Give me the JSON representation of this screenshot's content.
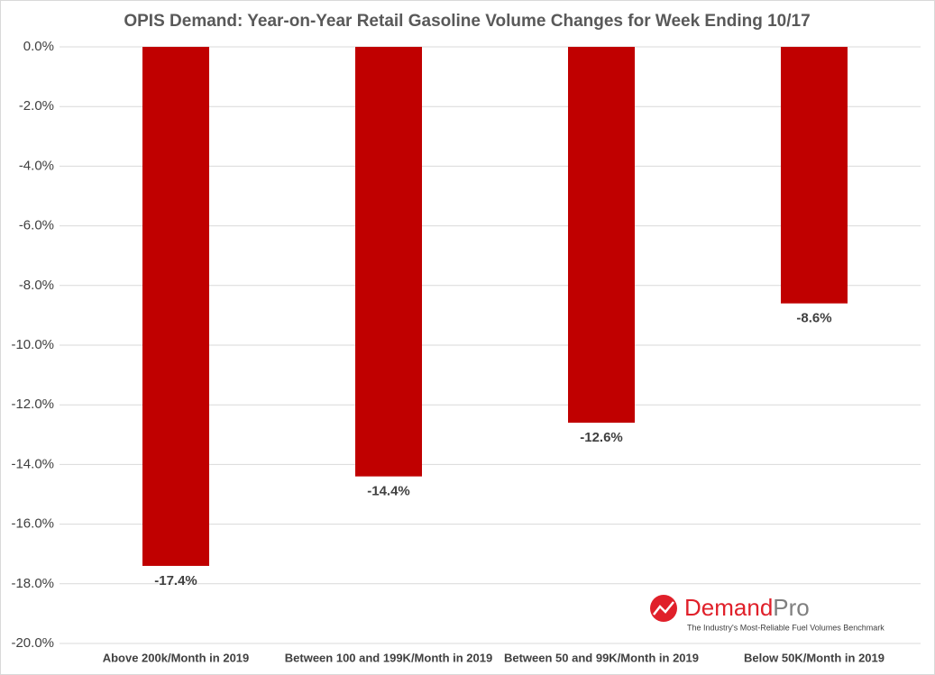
{
  "chart_data": {
    "type": "bar",
    "title": "OPIS Demand: Year-on-Year Retail Gasoline Volume Changes for Week Ending 10/17",
    "categories": [
      "Above 200k/Month in 2019",
      "Between 100 and 199K/Month in 2019",
      "Between 50 and 99K/Month in 2019",
      "Below 50K/Month in 2019"
    ],
    "values": [
      -17.4,
      -14.4,
      -12.6,
      -8.6
    ],
    "value_labels": [
      "-17.4%",
      "-14.4%",
      "-12.6%",
      "-8.6%"
    ],
    "color": "#c00000",
    "ylim": [
      -20,
      0
    ],
    "yticks": [
      {
        "value": 0,
        "label": "0.0%"
      },
      {
        "value": -2,
        "label": "-2.0%"
      },
      {
        "value": -4,
        "label": "-4.0%"
      },
      {
        "value": -6,
        "label": "-6.0%"
      },
      {
        "value": -8,
        "label": "-8.0%"
      },
      {
        "value": -10,
        "label": "-10.0%"
      },
      {
        "value": -12,
        "label": "-12.0%"
      },
      {
        "value": -14,
        "label": "-14.0%"
      },
      {
        "value": -16,
        "label": "-16.0%"
      },
      {
        "value": -18,
        "label": "-18.0%"
      },
      {
        "value": -20,
        "label": "-20.0%"
      }
    ],
    "grid": true
  },
  "logo": {
    "name": [
      "Demand",
      "Pro"
    ],
    "tagline": "The Industry's Most-Reliable Fuel Volumes Benchmark"
  }
}
